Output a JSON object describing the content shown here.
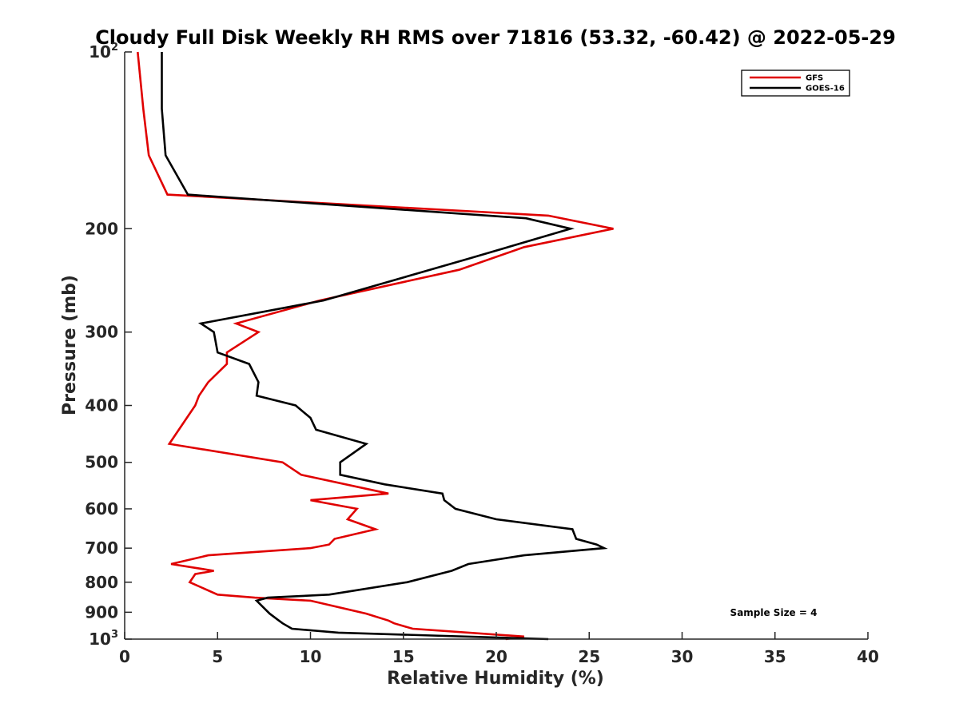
{
  "chart_data": {
    "type": "line",
    "title": "Cloudy Full Disk Weekly RH RMS over 71816 (53.32, -60.42) @ 2022-05-29",
    "xlabel": "Relative Humidity (%)",
    "ylabel": "Pressure (mb)",
    "xlim": [
      0,
      40
    ],
    "ylim": [
      100,
      1000
    ],
    "yscale": "log",
    "y_reversed": true,
    "grid": false,
    "legend_position": "top-right",
    "x_ticks": [
      "0",
      "5",
      "10",
      "15",
      "20",
      "25",
      "30",
      "35",
      "40"
    ],
    "y_ticks": [
      {
        "value": 100,
        "base": "10",
        "exp": "2"
      },
      {
        "value": 200,
        "label": "200"
      },
      {
        "value": 300,
        "label": "300"
      },
      {
        "value": 400,
        "label": "400"
      },
      {
        "value": 500,
        "label": "500"
      },
      {
        "value": 600,
        "label": "600"
      },
      {
        "value": 700,
        "label": "700"
      },
      {
        "value": 800,
        "label": "800"
      },
      {
        "value": 900,
        "label": "900"
      },
      {
        "value": 1000,
        "base": "10",
        "exp": "3"
      }
    ],
    "annotation": "Sample Size = 4",
    "series": [
      {
        "name": "GFS",
        "color": "#e00000",
        "points": [
          [
            0.7,
            100
          ],
          [
            1.0,
            125
          ],
          [
            1.3,
            150
          ],
          [
            2.3,
            175
          ],
          [
            22.8,
            190
          ],
          [
            26.3,
            200
          ],
          [
            21.5,
            215
          ],
          [
            18.0,
            235
          ],
          [
            10.5,
            265
          ],
          [
            6.0,
            290
          ],
          [
            7.2,
            300
          ],
          [
            5.5,
            325
          ],
          [
            5.5,
            340
          ],
          [
            4.5,
            365
          ],
          [
            4.0,
            385
          ],
          [
            3.8,
            400
          ],
          [
            2.4,
            465
          ],
          [
            8.5,
            500
          ],
          [
            9.5,
            525
          ],
          [
            14.2,
            565
          ],
          [
            10.0,
            580
          ],
          [
            12.5,
            600
          ],
          [
            12.0,
            625
          ],
          [
            13.5,
            650
          ],
          [
            11.3,
            675
          ],
          [
            11.0,
            690
          ],
          [
            10.0,
            700
          ],
          [
            4.5,
            720
          ],
          [
            2.5,
            745
          ],
          [
            4.8,
            765
          ],
          [
            3.8,
            775
          ],
          [
            3.5,
            800
          ],
          [
            5.0,
            840
          ],
          [
            7.0,
            850
          ],
          [
            10.0,
            860
          ],
          [
            13.0,
            905
          ],
          [
            14.2,
            930
          ],
          [
            14.5,
            940
          ],
          [
            15.5,
            960
          ],
          [
            21.5,
            990
          ],
          [
            20.5,
            1000
          ]
        ]
      },
      {
        "name": "GOES-16",
        "color": "#000000",
        "points": [
          [
            2.0,
            100
          ],
          [
            2.0,
            125
          ],
          [
            2.2,
            150
          ],
          [
            3.4,
            175
          ],
          [
            21.6,
            192
          ],
          [
            24.0,
            200
          ],
          [
            18.5,
            225
          ],
          [
            10.7,
            265
          ],
          [
            4.1,
            290
          ],
          [
            4.8,
            300
          ],
          [
            5.0,
            325
          ],
          [
            6.7,
            340
          ],
          [
            7.2,
            365
          ],
          [
            7.1,
            385
          ],
          [
            9.2,
            400
          ],
          [
            10.0,
            420
          ],
          [
            10.3,
            440
          ],
          [
            13.0,
            465
          ],
          [
            11.6,
            500
          ],
          [
            11.6,
            525
          ],
          [
            14.0,
            545
          ],
          [
            17.1,
            565
          ],
          [
            17.2,
            580
          ],
          [
            17.8,
            600
          ],
          [
            20.0,
            625
          ],
          [
            24.1,
            650
          ],
          [
            24.3,
            675
          ],
          [
            25.4,
            690
          ],
          [
            25.8,
            700
          ],
          [
            21.5,
            720
          ],
          [
            18.5,
            745
          ],
          [
            17.6,
            765
          ],
          [
            15.2,
            800
          ],
          [
            11.0,
            840
          ],
          [
            7.7,
            850
          ],
          [
            7.1,
            860
          ],
          [
            7.8,
            905
          ],
          [
            8.3,
            930
          ],
          [
            8.5,
            940
          ],
          [
            9.0,
            960
          ],
          [
            11.5,
            975
          ],
          [
            22.8,
            1000
          ]
        ]
      }
    ]
  }
}
